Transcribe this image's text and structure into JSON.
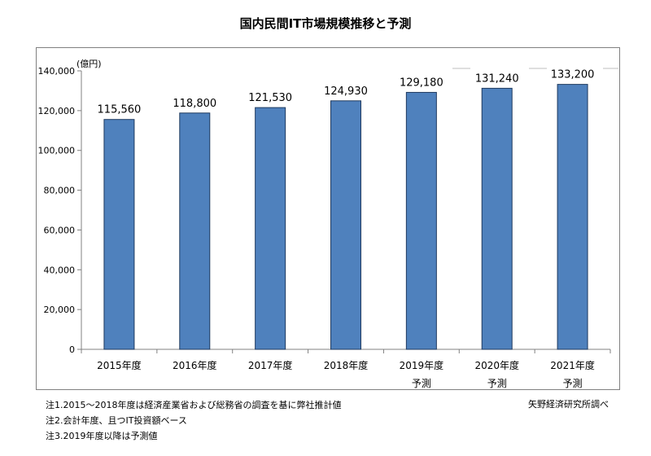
{
  "chart_data": {
    "type": "bar",
    "title": "国内民間IT市場規模推移と予測",
    "ylabel": "(億円)",
    "xlabel": "",
    "categories": [
      [
        "2015年度"
      ],
      [
        "2016年度"
      ],
      [
        "2017年度"
      ],
      [
        "2018年度"
      ],
      [
        "2019年度",
        "予測"
      ],
      [
        "2020年度",
        "予測"
      ],
      [
        "2021年度",
        "予測"
      ]
    ],
    "values": [
      115560,
      118800,
      121530,
      124930,
      129180,
      131240,
      133200
    ],
    "value_labels": [
      "115,560",
      "118,800",
      "121,530",
      "124,930",
      "129,180",
      "131,240",
      "133,200"
    ],
    "ylim": [
      0,
      140000
    ],
    "yticks": [
      0,
      20000,
      40000,
      60000,
      80000,
      100000,
      120000,
      140000
    ],
    "ytick_labels": [
      "0",
      "20,000",
      "40,000",
      "60,000",
      "80,000",
      "100,000",
      "120,000",
      "140,000"
    ],
    "grid": false,
    "bar_color": "#4f81bd",
    "bar_edge_color": "#1f3a5f"
  },
  "footnotes": [
    "注1.2015～2018年度は経済産業省および総務省の調査を基に弊社推計値",
    "注2.会計年度、且つIT投資額ベース",
    "注3.2019年度以降は予測値"
  ],
  "source": "矢野経済研究所調べ"
}
